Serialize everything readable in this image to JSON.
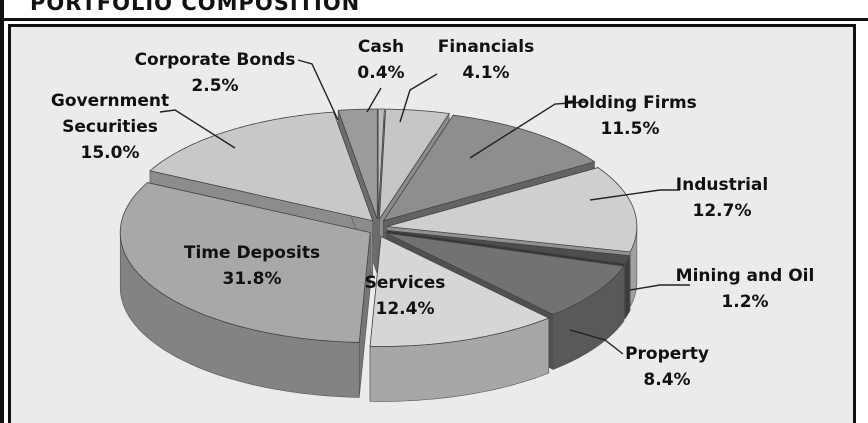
{
  "chart_data": {
    "type": "pie",
    "title": "PORTFOLIO COMPOSITION",
    "categories": [
      "Cash",
      "Financials",
      "Holding Firms",
      "Industrial",
      "Mining and Oil",
      "Property",
      "Services",
      "Time Deposits",
      "Government Securities",
      "Corporate Bonds"
    ],
    "values": [
      0.4,
      4.1,
      11.5,
      12.7,
      1.2,
      8.4,
      12.4,
      31.8,
      15.0,
      2.5
    ],
    "value_labels": [
      "0.4%",
      "4.1%",
      "11.5%",
      "12.7%",
      "1.2%",
      "8.4%",
      "12.4%",
      "31.8%",
      "15.0%",
      "2.5%"
    ],
    "colors": [
      "#bdbdbd",
      "#c6c6c6",
      "#8e8e8e",
      "#cfcfcf",
      "#4d4d4d",
      "#727272",
      "#d6d6d6",
      "#a8a8a8",
      "#c8c8c8",
      "#9c9c9c"
    ]
  }
}
